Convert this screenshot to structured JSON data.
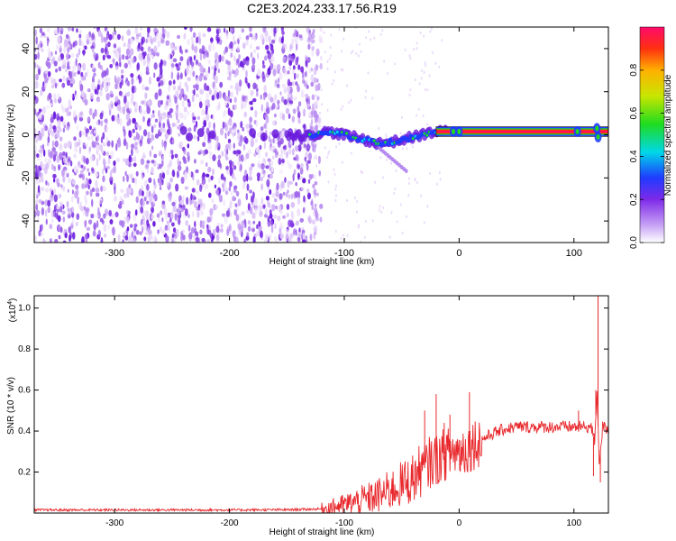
{
  "title": "C2E3.2024.233.17.56.R19",
  "chart_data": [
    {
      "type": "heatmap",
      "xlabel": "Height of straight line (km)",
      "ylabel": "Frequency (Hz)",
      "xlim": [
        -370,
        130
      ],
      "ylim": [
        -50,
        50
      ],
      "xticks": [
        -300,
        -200,
        -100,
        0,
        100
      ],
      "yticks": [
        -40,
        -20,
        0,
        20,
        40
      ],
      "colorbar": {
        "label": "Normalized spectral amplitude",
        "range": [
          0.0,
          1.0
        ],
        "ticks": [
          0.0,
          0.2,
          0.4,
          0.6,
          0.8
        ],
        "tick_labels": [
          "0.0",
          "0.2",
          "0.4",
          "0.6",
          "0.8"
        ],
        "colors": [
          "#ffffff",
          "#c7a2f5",
          "#7e2ae8",
          "#1f3bff",
          "#00d8e8",
          "#1fdc1f",
          "#c8e600",
          "#ffb000",
          "#ff3010",
          "#ff0a6a"
        ]
      },
      "trace": [
        {
          "x": -150,
          "y": 0.5
        },
        {
          "x": -130,
          "y": -0.5
        },
        {
          "x": -115,
          "y": 1.5
        },
        {
          "x": -100,
          "y": 0
        },
        {
          "x": -85,
          "y": -2
        },
        {
          "x": -70,
          "y": -4
        },
        {
          "x": -55,
          "y": -3
        },
        {
          "x": -40,
          "y": -1
        },
        {
          "x": -25,
          "y": 1
        },
        {
          "x": -15,
          "y": 1.5
        },
        {
          "x": 0,
          "y": 1.5
        },
        {
          "x": 60,
          "y": 1.5
        },
        {
          "x": 100,
          "y": 1.5
        },
        {
          "x": 130,
          "y": 1.5
        }
      ]
    },
    {
      "type": "line",
      "xlabel": "Height of straight line (km)",
      "ylabel": "SNR (10 * v/v)",
      "multiplier_label": "(x10",
      "multiplier_exp": "4",
      "xlim": [
        -370,
        130
      ],
      "ylim": [
        0,
        1.06
      ],
      "xticks": [
        -300,
        -200,
        -100,
        0,
        100
      ],
      "yticks": [
        0.2,
        0.4,
        0.6,
        0.8,
        1.0
      ],
      "ytick_labels": [
        "0.2",
        "0.4",
        "0.6",
        "0.8",
        "1.0"
      ],
      "color": "#e8282c",
      "series": [
        {
          "x": [
            -370,
            -300,
            -200,
            -150,
            -120,
            -110,
            -100,
            -90,
            -80,
            -70,
            -60,
            -50,
            -40,
            -35,
            -30,
            -25,
            -20,
            -15,
            -10,
            -5,
            0,
            5,
            10,
            20,
            30,
            40,
            50,
            60,
            70,
            80,
            90,
            100,
            105,
            110,
            115,
            118,
            120,
            122,
            125,
            130
          ],
          "values": [
            0.015,
            0.015,
            0.015,
            0.016,
            0.02,
            0.03,
            0.04,
            0.055,
            0.07,
            0.085,
            0.11,
            0.14,
            0.17,
            0.2,
            0.22,
            0.25,
            0.26,
            0.28,
            0.29,
            0.3,
            0.3,
            0.31,
            0.33,
            0.36,
            0.39,
            0.41,
            0.42,
            0.42,
            0.42,
            0.42,
            0.42,
            0.42,
            0.42,
            0.42,
            0.42,
            0.35,
            0.6,
            0.25,
            0.42,
            0.41
          ]
        }
      ],
      "spikes": [
        {
          "x": -30,
          "y": 0.5
        },
        {
          "x": -20,
          "y": 0.58
        },
        {
          "x": -13,
          "y": 0.44
        },
        {
          "x": -8,
          "y": 0.48
        },
        {
          "x": 9,
          "y": 0.59
        },
        {
          "x": 104,
          "y": 0.5
        },
        {
          "x": 117,
          "y": 0.18
        },
        {
          "x": 119,
          "y": 0.6
        },
        {
          "x": 121,
          "y": 1.06
        },
        {
          "x": 123,
          "y": 0.15
        }
      ]
    }
  ]
}
